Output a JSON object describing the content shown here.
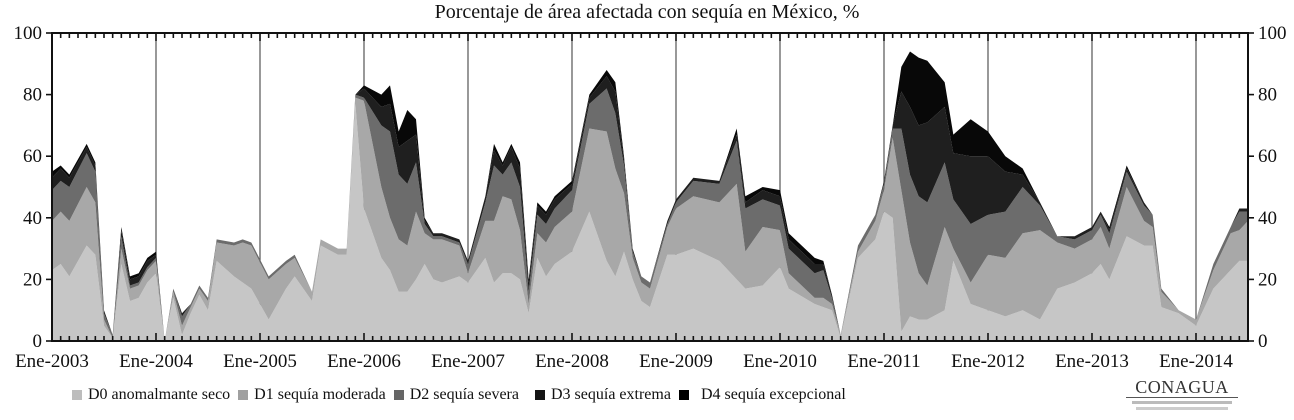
{
  "chart_data": {
    "type": "area",
    "stacked": true,
    "title": "Porcentaje de área afectada con sequía en México, %",
    "xlabel": "",
    "ylabel": "",
    "ylim": [
      0,
      100
    ],
    "yticks": [
      0,
      20,
      40,
      60,
      80,
      100
    ],
    "xlim": [
      "2003-01",
      "2014-07"
    ],
    "xtick_labels": [
      "Ene-2003",
      "Ene-2004",
      "Ene-2005",
      "Ene-2006",
      "Ene-2007",
      "Ene-2008",
      "Ene-2009",
      "Ene-2010",
      "Ene-2011",
      "Ene-2012",
      "Ene-2013",
      "Ene-2014"
    ],
    "grid": "vertical lines at each January",
    "legend_position": "bottom",
    "x": [
      "2003-01",
      "2003-02",
      "2003-03",
      "2003-05",
      "2003-06",
      "2003-07",
      "2003-08",
      "2003-09",
      "2003-10",
      "2003-11",
      "2003-12",
      "2004-01",
      "2004-02",
      "2004-03",
      "2004-04",
      "2004-05",
      "2004-06",
      "2004-07",
      "2004-08",
      "2004-10",
      "2004-11",
      "2004-12",
      "2005-02",
      "2005-04",
      "2005-05",
      "2005-07",
      "2005-08",
      "2005-10",
      "2005-11",
      "2005-12",
      "2006-01",
      "2006-03",
      "2006-04",
      "2006-05",
      "2006-06",
      "2006-07",
      "2006-08",
      "2006-09",
      "2006-10",
      "2006-12",
      "2007-01",
      "2007-03",
      "2007-04",
      "2007-05",
      "2007-06",
      "2007-07",
      "2007-08",
      "2007-09",
      "2007-10",
      "2007-11",
      "2008-01",
      "2008-03",
      "2008-05",
      "2008-06",
      "2008-07",
      "2008-08",
      "2008-09",
      "2008-10",
      "2008-12",
      "2009-01",
      "2009-03",
      "2009-06",
      "2009-08",
      "2009-09",
      "2009-11",
      "2010-01",
      "2010-02",
      "2010-05",
      "2010-06",
      "2010-07",
      "2010-08",
      "2010-10",
      "2010-12",
      "2011-01",
      "2011-02",
      "2011-03",
      "2011-04",
      "2011-05",
      "2011-06",
      "2011-08",
      "2011-09",
      "2011-11",
      "2012-01",
      "2012-03",
      "2012-05",
      "2012-07",
      "2012-09",
      "2012-11",
      "2013-01",
      "2013-02",
      "2013-03",
      "2013-05",
      "2013-07",
      "2013-08",
      "2013-09",
      "2013-11",
      "2014-01",
      "2014-03",
      "2014-05",
      "2014-06",
      "2014-07"
    ],
    "series": [
      {
        "name": "D0 anomalmante seco",
        "color": "#c6c6c6",
        "values": [
          23,
          25,
          21,
          31,
          28,
          5,
          1,
          25,
          13,
          14,
          19,
          22,
          0,
          14,
          2,
          9,
          15,
          10,
          26,
          21,
          19,
          17,
          7,
          17,
          21,
          13,
          31,
          28,
          28,
          77,
          43,
          27,
          23,
          16,
          16,
          20,
          25,
          20,
          19,
          21,
          19,
          27,
          19,
          22,
          22,
          20,
          9,
          27,
          21,
          25,
          29,
          42,
          26,
          21,
          29,
          20,
          13,
          11,
          28,
          28,
          30,
          26,
          20,
          17,
          18,
          24,
          17,
          12,
          11,
          10,
          1,
          27,
          33,
          42,
          40,
          3,
          8,
          7,
          7,
          10,
          26,
          12,
          10,
          8,
          10,
          7,
          17,
          19,
          22,
          25,
          20,
          34,
          31,
          31,
          11,
          9,
          5,
          17,
          23,
          26,
          26
        ]
      },
      {
        "name": "D1 sequía moderada",
        "color": "#a8a8a8",
        "values": [
          16,
          17,
          18,
          19,
          17,
          2,
          0,
          5,
          4,
          4,
          4,
          4,
          0,
          2,
          3,
          2,
          2,
          3,
          6,
          10,
          13,
          14,
          13,
          8,
          6,
          3,
          2,
          2,
          2,
          2,
          35,
          23,
          17,
          17,
          15,
          22,
          10,
          13,
          14,
          10,
          3,
          12,
          20,
          25,
          24,
          16,
          3,
          8,
          11,
          12,
          13,
          27,
          42,
          35,
          19,
          7,
          6,
          6,
          9,
          15,
          17,
          19,
          31,
          12,
          19,
          12,
          5,
          2,
          3,
          2,
          1,
          2,
          6,
          7,
          26,
          46,
          24,
          15,
          11,
          27,
          4,
          7,
          18,
          19,
          25,
          29,
          15,
          11,
          11,
          12,
          10,
          16,
          8,
          6,
          5,
          1,
          2,
          6,
          12,
          10,
          13
        ]
      },
      {
        "name": "D2 sequía severa",
        "color": "#6c6c6c",
        "values": [
          10,
          10,
          11,
          11,
          10,
          2,
          1,
          4,
          1,
          1,
          1,
          1,
          0,
          1,
          3,
          1,
          1,
          1,
          1,
          1,
          1,
          1,
          1,
          1,
          1,
          0,
          0,
          0,
          0,
          1,
          1,
          20,
          28,
          21,
          20,
          16,
          3,
          1,
          1,
          1,
          3,
          6,
          18,
          7,
          12,
          14,
          4,
          6,
          6,
          6,
          7,
          8,
          14,
          18,
          9,
          2,
          2,
          2,
          1,
          2,
          5,
          6,
          14,
          14,
          9,
          8,
          8,
          8,
          9,
          2,
          0,
          2,
          2,
          2,
          3,
          20,
          22,
          25,
          27,
          21,
          16,
          19,
          13,
          15,
          15,
          8,
          2,
          3,
          3,
          4,
          5,
          5,
          5,
          4,
          1,
          0,
          0,
          2,
          2,
          6,
          3
        ]
      },
      {
        "name": "D3 sequía extrema",
        "color": "#1f1f1f",
        "values": [
          4,
          4,
          3,
          2,
          2,
          1,
          0,
          2,
          2,
          2,
          2,
          1,
          0,
          0,
          1,
          0,
          0,
          0,
          0,
          0,
          0,
          0,
          0,
          0,
          0,
          0,
          0,
          0,
          0,
          0,
          3,
          6,
          9,
          9,
          14,
          9,
          1,
          1,
          1,
          1,
          1,
          2,
          5,
          3,
          5,
          6,
          3,
          3,
          3,
          3,
          2,
          2,
          4,
          7,
          2,
          1,
          0,
          0,
          1,
          1,
          1,
          1,
          2,
          2,
          3,
          3,
          3,
          3,
          2,
          1,
          0,
          0,
          0,
          1,
          1,
          12,
          22,
          23,
          26,
          18,
          15,
          22,
          19,
          13,
          4,
          1,
          0,
          1,
          1,
          1,
          1,
          1,
          1,
          0,
          0,
          0,
          0,
          0,
          0,
          1,
          1
        ]
      },
      {
        "name": "D4 sequía excepcional",
        "color": "#080808",
        "values": [
          2,
          1,
          1,
          1,
          1,
          0,
          0,
          1,
          1,
          1,
          1,
          1,
          0,
          0,
          0,
          0,
          0,
          0,
          0,
          0,
          0,
          0,
          0,
          0,
          0,
          0,
          0,
          0,
          0,
          0,
          1,
          4,
          6,
          5,
          10,
          5,
          1,
          0,
          0,
          0,
          0,
          0,
          2,
          1,
          1,
          2,
          1,
          1,
          1,
          1,
          1,
          1,
          2,
          3,
          1,
          0,
          0,
          0,
          0,
          0,
          0,
          0,
          2,
          2,
          1,
          2,
          2,
          2,
          1,
          0,
          0,
          0,
          0,
          0,
          0,
          8,
          18,
          22,
          20,
          8,
          6,
          12,
          8,
          5,
          2,
          0,
          0,
          0,
          0,
          0,
          1,
          1,
          0,
          0,
          0,
          0,
          0,
          0,
          0,
          0,
          0
        ]
      }
    ]
  },
  "legend": [
    {
      "label": "D0 anomalmante seco",
      "color": "#bdbdbd"
    },
    {
      "label": "D1 sequía moderada",
      "color": "#a0a0a0"
    },
    {
      "label": "D2 sequía severa",
      "color": "#666666"
    },
    {
      "label": "D3 sequía extrema",
      "color": "#141414"
    },
    {
      "label": "D4 sequía excepcional",
      "color": "#000000"
    }
  ],
  "logo": {
    "text": "CONAGUA"
  }
}
